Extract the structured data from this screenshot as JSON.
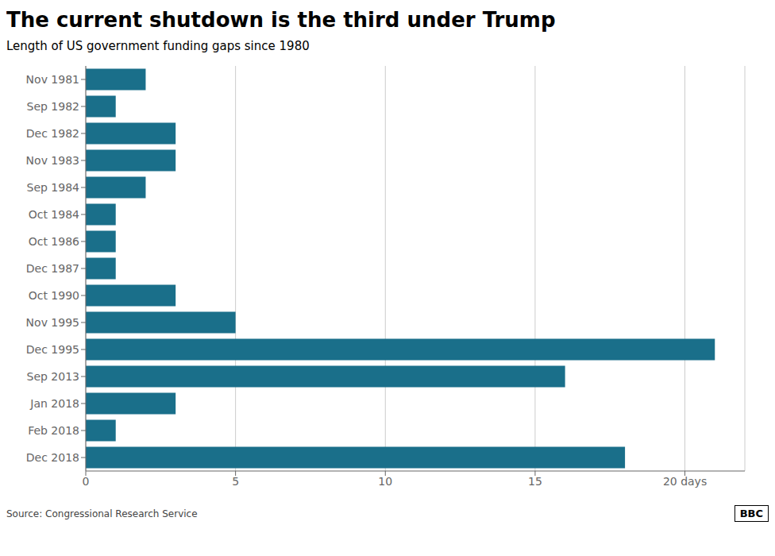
{
  "chart_data": {
    "type": "bar",
    "orientation": "horizontal",
    "title": "The current shutdown is the third under Trump",
    "subtitle": "Length of US government funding gaps since 1980",
    "annotations": [
      "Source: Congressional Research Service",
      "BBC"
    ],
    "categories": [
      "Nov 1981",
      "Sep 1982",
      "Dec 1982",
      "Nov 1983",
      "Sep 1984",
      "Oct 1984",
      "Oct 1986",
      "Dec 1987",
      "Oct 1990",
      "Nov 1995",
      "Dec 1995",
      "Sep 2013",
      "Jan 2018",
      "Feb 2018",
      "Dec 2018"
    ],
    "values": [
      2,
      1,
      3,
      3,
      2,
      1,
      1,
      1,
      3,
      5,
      21,
      16,
      3,
      1,
      18
    ],
    "color": "#1a6f8a",
    "xlim": [
      0,
      22
    ],
    "xticks": [
      0,
      5,
      10,
      15,
      {
        "value": 20,
        "label": "20 days"
      }
    ],
    "grid": true
  }
}
